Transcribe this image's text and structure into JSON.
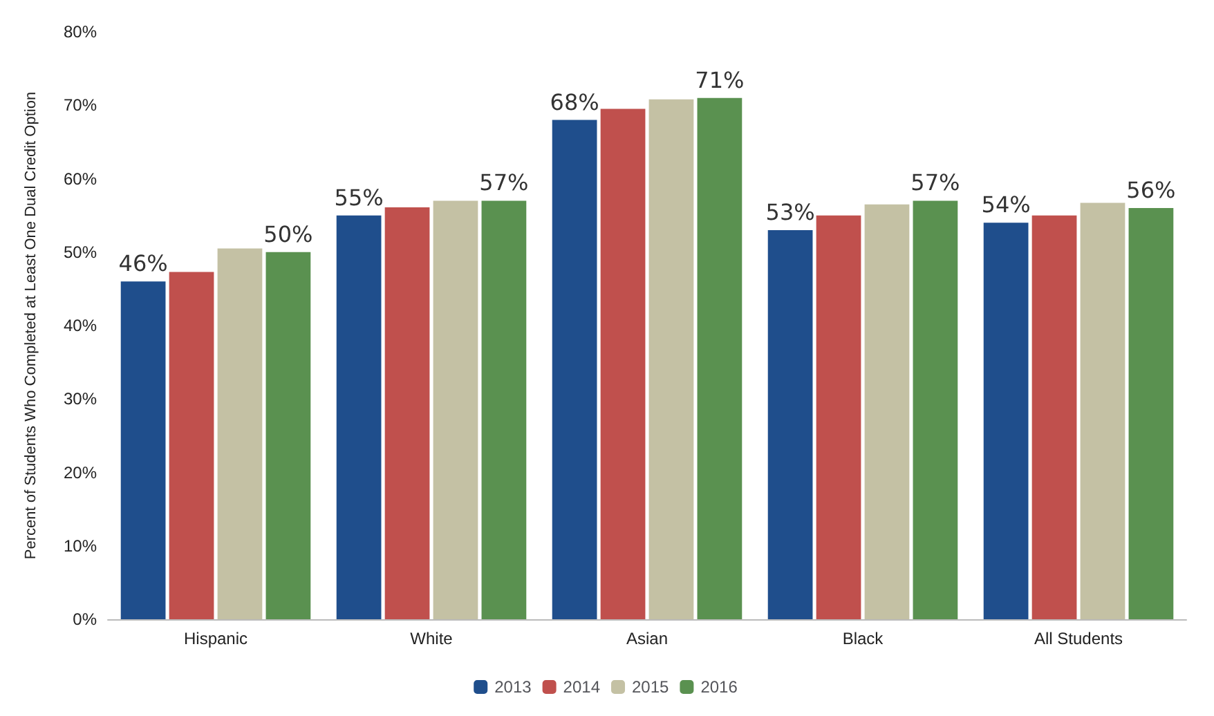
{
  "chart_data": {
    "type": "bar",
    "ylabel": "Percent of Students Who Completed at Least One Dual Credit Option",
    "categories": [
      "Hispanic",
      "White",
      "Asian",
      "Black",
      "All Students"
    ],
    "series": [
      {
        "name": "2013",
        "color": "#1f4e8c",
        "values": [
          46,
          55,
          68,
          53,
          54
        ],
        "value_labels": [
          "46%",
          "55%",
          "68%",
          "53%",
          "54%"
        ]
      },
      {
        "name": "2014",
        "color": "#c0504d",
        "values": [
          47.3,
          56.1,
          69.5,
          55,
          55
        ],
        "value_labels": [
          null,
          null,
          null,
          null,
          null
        ]
      },
      {
        "name": "2015",
        "color": "#c4c1a4",
        "values": [
          50.5,
          57,
          70.8,
          56.5,
          56.7
        ],
        "value_labels": [
          null,
          null,
          null,
          null,
          null
        ]
      },
      {
        "name": "2016",
        "color": "#5a9150",
        "values": [
          50,
          57,
          71,
          57,
          56
        ],
        "value_labels": [
          "50%",
          "57%",
          "71%",
          "57%",
          "56%"
        ]
      }
    ],
    "ylim": [
      0,
      80
    ],
    "yticks": [
      {
        "value": 0,
        "label": "0%"
      },
      {
        "value": 10,
        "label": "10%"
      },
      {
        "value": 20,
        "label": "20%"
      },
      {
        "value": 30,
        "label": "30%"
      },
      {
        "value": 40,
        "label": "40%"
      },
      {
        "value": 50,
        "label": "50%"
      },
      {
        "value": 60,
        "label": "60%"
      },
      {
        "value": 70,
        "label": "70%"
      },
      {
        "value": 80,
        "label": "80%"
      }
    ],
    "legend": "bottom",
    "grid": false
  }
}
